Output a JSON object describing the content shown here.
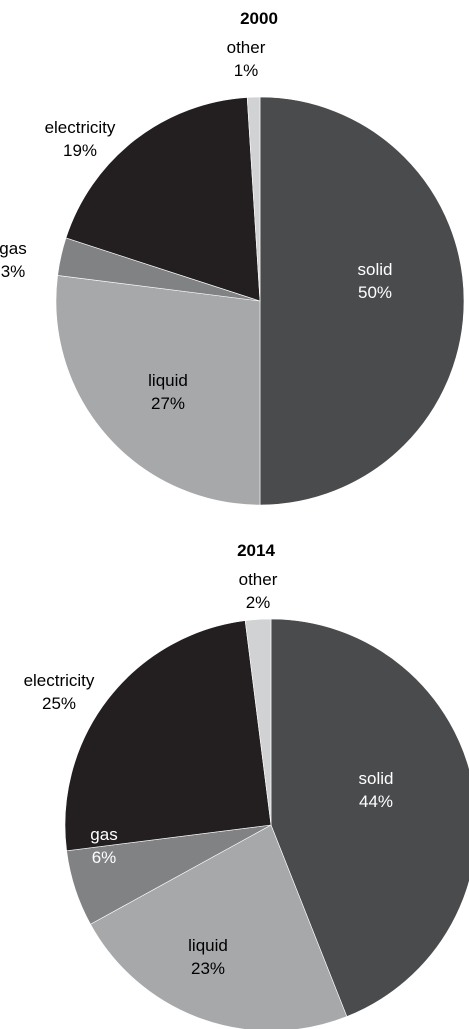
{
  "chart_data": [
    {
      "type": "pie",
      "title": "2000",
      "slices": [
        {
          "label": "solid",
          "value": 50,
          "value_label": "50%",
          "color": "#4a4b4d"
        },
        {
          "label": "liquid",
          "value": 27,
          "value_label": "27%",
          "color": "#a7a8aa"
        },
        {
          "label": "gas",
          "value": 3,
          "value_label": "3%",
          "color": "#818284"
        },
        {
          "label": "electricity",
          "value": 19,
          "value_label": "19%",
          "color": "#231f20"
        },
        {
          "label": "other",
          "value": 1,
          "value_label": "1%",
          "color": "#d1d2d4"
        }
      ]
    },
    {
      "type": "pie",
      "title": "2014",
      "slices": [
        {
          "label": "solid",
          "value": 44,
          "value_label": "44%",
          "color": "#4a4b4d"
        },
        {
          "label": "liquid",
          "value": 23,
          "value_label": "23%",
          "color": "#a7a8aa"
        },
        {
          "label": "gas",
          "value": 6,
          "value_label": "6%",
          "color": "#818284"
        },
        {
          "label": "electricity",
          "value": 25,
          "value_label": "25%",
          "color": "#231f20"
        },
        {
          "label": "other",
          "value": 2,
          "value_label": "2%",
          "color": "#d1d2d4"
        }
      ]
    }
  ]
}
